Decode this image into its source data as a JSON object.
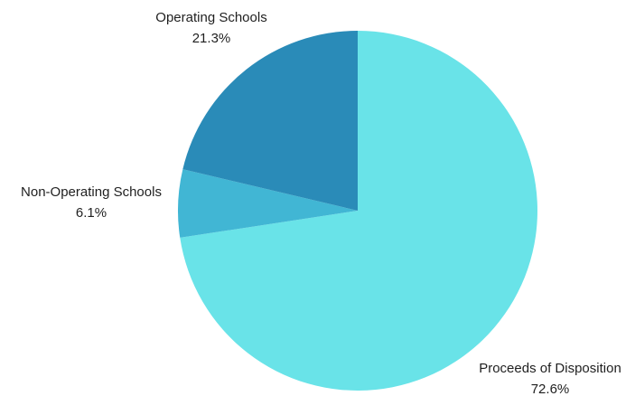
{
  "chart_data": {
    "type": "pie",
    "title": "",
    "start_angle_deg": 0,
    "direction": "clockwise",
    "slices": [
      {
        "label": "Proceeds of Disposition",
        "value": 72.6,
        "value_label": "72.6%",
        "color": "#69E3E8"
      },
      {
        "label": "Non-Operating Schools",
        "value": 6.1,
        "value_label": "6.1%",
        "color": "#41B6D4"
      },
      {
        "label": "Operating Schools",
        "value": 21.3,
        "value_label": "21.3%",
        "color": "#2A8BB8"
      }
    ]
  }
}
